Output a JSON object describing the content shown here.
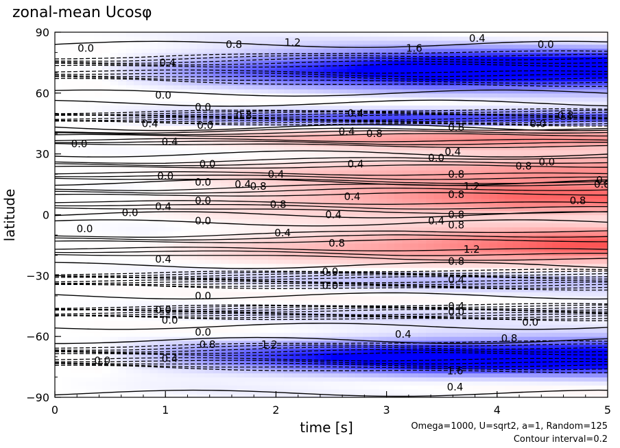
{
  "title": "zonal-mean Ucosφ",
  "chart_data": {
    "type": "heatmap",
    "title": "zonal-mean Ucosφ",
    "xlabel": "time [s]",
    "ylabel": "latitude",
    "xlim": [
      0,
      5
    ],
    "ylim": [
      -90,
      90
    ],
    "x_ticks": [
      "0",
      "1",
      "2",
      "3",
      "4",
      "5"
    ],
    "y_ticks": [
      "90",
      "60",
      "30",
      "0",
      "−30",
      "−60",
      "−90"
    ],
    "x_tick_values": [
      0,
      1,
      2,
      3,
      4,
      5
    ],
    "y_tick_values": [
      90,
      60,
      30,
      0,
      -30,
      -60,
      -90
    ],
    "contour_interval": 0.2,
    "colors": {
      "negative": "#0000ff",
      "positive": "#ff5050",
      "zero": "#ffffff"
    },
    "bands": [
      {
        "lat": 72,
        "width": 9,
        "peak": -1.6,
        "onset": 0.8
      },
      {
        "lat": 48,
        "width": 4,
        "peak": -0.9,
        "onset": 0.6
      },
      {
        "lat": 38,
        "width": 5,
        "peak": 0.8,
        "onset": 1.1
      },
      {
        "lat": 22,
        "width": 7,
        "peak": 0.8,
        "onset": 1.5
      },
      {
        "lat": 8,
        "width": 8,
        "peak": 1.0,
        "onset": 1.3
      },
      {
        "lat": -15,
        "width": 8,
        "peak": 1.2,
        "onset": 1.6
      },
      {
        "lat": -32,
        "width": 5,
        "peak": -0.3,
        "onset": 1.0
      },
      {
        "lat": -48,
        "width": 4,
        "peak": -0.2,
        "onset": 0.8
      },
      {
        "lat": -70,
        "width": 8,
        "peak": -1.6,
        "onset": 0.8
      }
    ],
    "contour_labels": [
      {
        "t": 0.28,
        "lat": 82,
        "text": "0.0"
      },
      {
        "t": 1.02,
        "lat": 75,
        "text": "0.4"
      },
      {
        "t": 1.62,
        "lat": 84,
        "text": "0.8"
      },
      {
        "t": 2.15,
        "lat": 85,
        "text": "1.2"
      },
      {
        "t": 3.25,
        "lat": 82,
        "text": "1.6"
      },
      {
        "t": 3.82,
        "lat": 87,
        "text": "0.4"
      },
      {
        "t": 4.44,
        "lat": 84,
        "text": "0.0"
      },
      {
        "t": 0.98,
        "lat": 59,
        "text": "0.0"
      },
      {
        "t": 1.34,
        "lat": 53,
        "text": "0.0"
      },
      {
        "t": 1.71,
        "lat": 49,
        "text": "0.8"
      },
      {
        "t": 0.86,
        "lat": 45,
        "text": "0.4"
      },
      {
        "t": 1.36,
        "lat": 44,
        "text": "0.0"
      },
      {
        "t": 0.22,
        "lat": 35,
        "text": "0.0"
      },
      {
        "t": 1.04,
        "lat": 36,
        "text": "0.4"
      },
      {
        "t": 2.64,
        "lat": 41,
        "text": "0.4"
      },
      {
        "t": 2.89,
        "lat": 40,
        "text": "0.8"
      },
      {
        "t": 2.72,
        "lat": 50,
        "text": "0.4"
      },
      {
        "t": 3.45,
        "lat": 28,
        "text": "0.0"
      },
      {
        "t": 1.38,
        "lat": 25,
        "text": "0.0"
      },
      {
        "t": 1.0,
        "lat": 19,
        "text": "0.0"
      },
      {
        "t": 2.0,
        "lat": 20,
        "text": "0.4"
      },
      {
        "t": 2.72,
        "lat": 25,
        "text": "0.4"
      },
      {
        "t": 3.63,
        "lat": 43,
        "text": "0.8"
      },
      {
        "t": 3.6,
        "lat": 31,
        "text": "0.4"
      },
      {
        "t": 3.63,
        "lat": 20,
        "text": "0.8"
      },
      {
        "t": 3.77,
        "lat": 14,
        "text": "1.2"
      },
      {
        "t": 3.63,
        "lat": 10,
        "text": "0.8"
      },
      {
        "t": 4.24,
        "lat": 24,
        "text": "0.8"
      },
      {
        "t": 4.45,
        "lat": 26,
        "text": "0.0"
      },
      {
        "t": 4.37,
        "lat": 45,
        "text": "0.0"
      },
      {
        "t": 4.62,
        "lat": 49,
        "text": "0.8"
      },
      {
        "t": 4.97,
        "lat": 17,
        "text": "0.4"
      },
      {
        "t": 4.95,
        "lat": 15,
        "text": "0.8"
      },
      {
        "t": 4.73,
        "lat": 7,
        "text": "0.8"
      },
      {
        "t": 1.34,
        "lat": 16,
        "text": "0.0"
      },
      {
        "t": 1.7,
        "lat": 15,
        "text": "0.4"
      },
      {
        "t": 1.84,
        "lat": 14,
        "text": "0.8"
      },
      {
        "t": 1.34,
        "lat": 7,
        "text": "0.0"
      },
      {
        "t": 0.98,
        "lat": 4,
        "text": "0.4"
      },
      {
        "t": 0.68,
        "lat": 1,
        "text": "0.0"
      },
      {
        "t": 2.02,
        "lat": 5,
        "text": "0.8"
      },
      {
        "t": 2.69,
        "lat": 9,
        "text": "0.4"
      },
      {
        "t": 2.52,
        "lat": 0,
        "text": "0.4"
      },
      {
        "t": 3.45,
        "lat": -3,
        "text": "0.4"
      },
      {
        "t": 3.63,
        "lat": 0,
        "text": "0.8"
      },
      {
        "t": 1.34,
        "lat": -3,
        "text": "0.0"
      },
      {
        "t": 0.27,
        "lat": -7,
        "text": "0.0"
      },
      {
        "t": 2.06,
        "lat": -9,
        "text": "0.4"
      },
      {
        "t": 2.55,
        "lat": -14,
        "text": "0.8"
      },
      {
        "t": 3.63,
        "lat": -5,
        "text": "0.8"
      },
      {
        "t": 3.77,
        "lat": -17,
        "text": "1.2"
      },
      {
        "t": 3.63,
        "lat": -23,
        "text": "0.8"
      },
      {
        "t": 0.98,
        "lat": -22,
        "text": "0.4"
      },
      {
        "t": 2.49,
        "lat": -28,
        "text": "0.0"
      },
      {
        "t": 2.49,
        "lat": -35,
        "text": "0.0"
      },
      {
        "t": 3.63,
        "lat": -32,
        "text": "0.4"
      },
      {
        "t": 1.34,
        "lat": -40,
        "text": "0.0"
      },
      {
        "t": 0.98,
        "lat": -47,
        "text": "0.0"
      },
      {
        "t": 1.04,
        "lat": -52,
        "text": "0.0"
      },
      {
        "t": 3.63,
        "lat": -45,
        "text": "0.4"
      },
      {
        "t": 3.63,
        "lat": -48,
        "text": "0.0"
      },
      {
        "t": 4.3,
        "lat": -53,
        "text": "0.0"
      },
      {
        "t": 1.34,
        "lat": -58,
        "text": "0.0"
      },
      {
        "t": 1.38,
        "lat": -64,
        "text": "0.8"
      },
      {
        "t": 1.04,
        "lat": -71,
        "text": "0.4"
      },
      {
        "t": 0.43,
        "lat": -72,
        "text": "0.0"
      },
      {
        "t": 1.94,
        "lat": -64,
        "text": "1.2"
      },
      {
        "t": 3.15,
        "lat": -59,
        "text": "0.4"
      },
      {
        "t": 4.11,
        "lat": -61,
        "text": "0.8"
      },
      {
        "t": 3.62,
        "lat": -85,
        "text": "0.4"
      },
      {
        "t": 3.62,
        "lat": -77,
        "text": "1.6"
      }
    ]
  },
  "footnote": {
    "line1": "Omega=1000, U=sqrt2, a=1, Random=125",
    "line2": "Contour interval=0.2"
  }
}
